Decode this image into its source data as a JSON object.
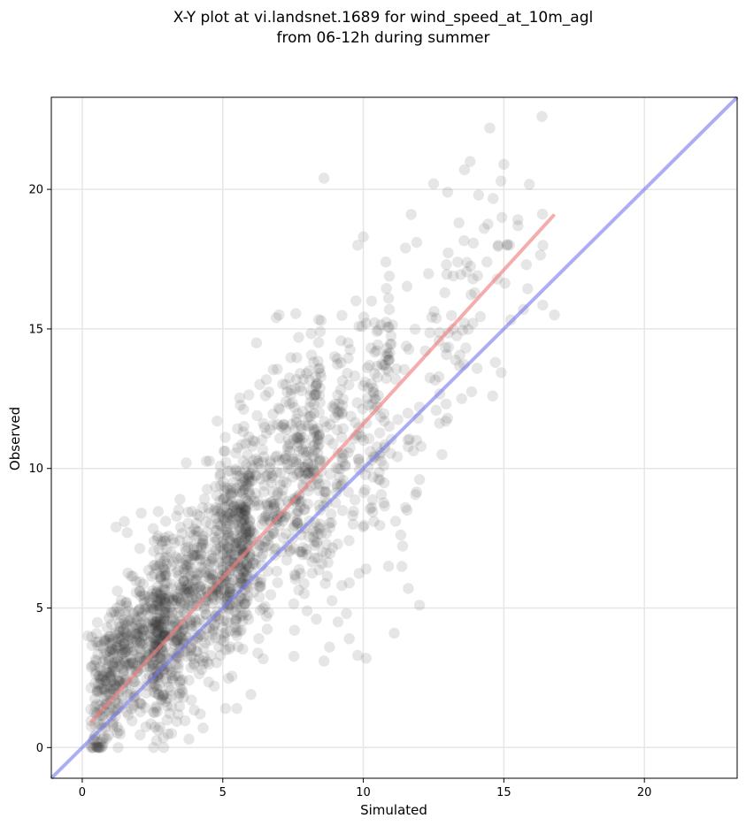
{
  "chart_data": {
    "type": "scatter",
    "title_line1": "X-Y plot at vi.landsnet.1689 for wind_speed_at_10m_agl",
    "title_line2": "from 06-12h during summer",
    "xlabel": "Simulated",
    "ylabel": "Observed",
    "xlim": [
      -1.1,
      23.3
    ],
    "ylim": [
      -1.1,
      23.3
    ],
    "xticks": [
      0,
      5,
      10,
      15,
      20
    ],
    "yticks": [
      0,
      5,
      10,
      15,
      20
    ],
    "grid": true,
    "point_color": "#333333",
    "point_opacity": 0.12,
    "regression_line": {
      "color": "#f08080",
      "x": [
        0.3,
        16.8
      ],
      "y": [
        0.9,
        19.1
      ]
    },
    "identity_line": {
      "color": "#7777ee",
      "x": [
        -1.1,
        23.3
      ],
      "y": [
        -1.1,
        23.3
      ]
    },
    "clusters": [
      {
        "x": [
          0.3,
          3.0
        ],
        "y": [
          0.0,
          6.5
        ],
        "n": 500
      },
      {
        "x": [
          2.5,
          6.0
        ],
        "y": [
          1.5,
          10.0
        ],
        "n": 700
      },
      {
        "x": [
          5.0,
          8.5
        ],
        "y": [
          4.0,
          14.0
        ],
        "n": 450
      },
      {
        "x": [
          7.5,
          11.0
        ],
        "y": [
          5.0,
          16.0
        ],
        "n": 250
      },
      {
        "x": [
          10.0,
          14.0
        ],
        "y": [
          8.0,
          19.0
        ],
        "n": 90
      },
      {
        "x": [
          13.0,
          16.5
        ],
        "y": [
          12.0,
          21.0
        ],
        "n": 25
      }
    ],
    "points": [
      [
        14.5,
        22.2
      ],
      [
        8.6,
        20.4
      ],
      [
        13.8,
        21.0
      ],
      [
        15.0,
        20.9
      ],
      [
        12.5,
        20.2
      ],
      [
        13.0,
        19.9
      ],
      [
        14.9,
        20.3
      ],
      [
        14.1,
        19.8
      ],
      [
        13.6,
        20.7
      ],
      [
        11.7,
        19.1
      ],
      [
        13.4,
        18.8
      ],
      [
        14.3,
        18.6
      ],
      [
        15.5,
        18.7
      ],
      [
        10.0,
        18.3
      ],
      [
        9.8,
        18.0
      ],
      [
        15.8,
        17.3
      ],
      [
        15.7,
        15.7
      ],
      [
        16.8,
        15.5
      ],
      [
        15.2,
        18.0
      ],
      [
        14.8,
        18.0
      ],
      [
        14.4,
        17.4
      ],
      [
        13.2,
        16.9
      ],
      [
        14.7,
        13.8
      ],
      [
        14.6,
        12.6
      ],
      [
        13.5,
        12.5
      ],
      [
        9.8,
        3.3
      ],
      [
        10.1,
        3.2
      ],
      [
        8.6,
        3.1
      ],
      [
        9.5,
        3.9
      ],
      [
        11.1,
        4.1
      ],
      [
        12.0,
        5.1
      ],
      [
        11.6,
        5.7
      ],
      [
        10.9,
        6.5
      ],
      [
        10.1,
        6.4
      ],
      [
        9.5,
        5.9
      ],
      [
        9.1,
        4.5
      ],
      [
        4.8,
        11.7
      ],
      [
        1.5,
        8.1
      ],
      [
        1.2,
        7.9
      ],
      [
        1.6,
        7.7
      ],
      [
        2.1,
        8.4
      ],
      [
        3.7,
        10.2
      ],
      [
        7.0,
        15.5
      ],
      [
        6.9,
        15.4
      ],
      [
        8.5,
        15.3
      ],
      [
        7.7,
        14.7
      ],
      [
        6.2,
        14.5
      ],
      [
        0.2,
        4.0
      ],
      [
        3.8,
        0.3
      ],
      [
        2.9,
        0.0
      ],
      [
        4.3,
        0.7
      ],
      [
        4.2,
        1.2
      ],
      [
        5.1,
        1.4
      ],
      [
        5.5,
        1.4
      ],
      [
        6.0,
        1.9
      ],
      [
        8.0,
        4.9
      ],
      [
        8.8,
        3.6
      ],
      [
        9.4,
        4.8
      ],
      [
        10.3,
        8.6
      ],
      [
        11.5,
        8.6
      ],
      [
        12.0,
        9.6
      ],
      [
        12.8,
        10.5
      ],
      [
        13.0,
        11.8
      ],
      [
        12.0,
        12.2
      ],
      [
        11.5,
        17.9
      ],
      [
        11.9,
        18.1
      ],
      [
        10.8,
        17.4
      ],
      [
        10.9,
        16.1
      ],
      [
        12.9,
        16.3
      ],
      [
        13.2,
        15.0
      ]
    ]
  }
}
